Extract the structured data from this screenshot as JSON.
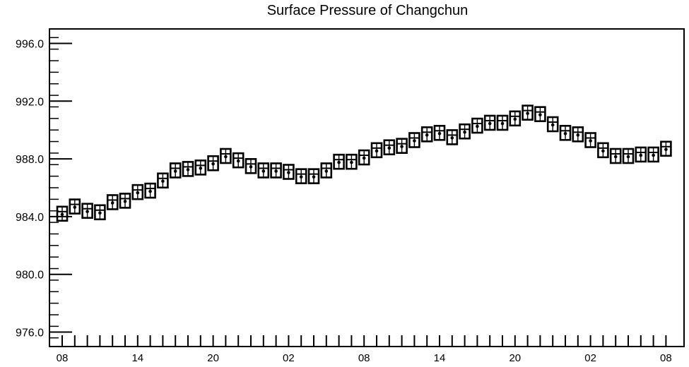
{
  "chart_data": {
    "type": "box",
    "title": "Surface Pressure of Changchun",
    "xlabel": "",
    "ylabel": "",
    "ylim": [
      975.0,
      997.0
    ],
    "y_ticks": [
      "976.0",
      "980.0",
      "984.0",
      "988.0",
      "992.0",
      "996.0"
    ],
    "x_ticks": [
      "08",
      "14",
      "20",
      "02",
      "08",
      "14",
      "20",
      "02",
      "08"
    ],
    "grid": false,
    "series": [
      {
        "values": [
          984.2,
          984.7,
          984.4,
          984.3,
          985.0,
          985.1,
          985.7,
          985.8,
          986.5,
          987.2,
          987.3,
          987.4,
          987.7,
          988.2,
          987.9,
          987.5,
          987.2,
          987.2,
          987.1,
          986.8,
          986.8,
          987.2,
          987.8,
          987.8,
          988.1,
          988.6,
          988.8,
          988.9,
          989.3,
          989.7,
          989.8,
          989.5,
          989.9,
          990.3,
          990.5,
          990.5,
          990.8,
          991.2,
          991.1,
          990.4,
          989.8,
          989.7,
          989.3,
          988.6,
          988.2,
          988.2,
          988.3,
          988.3,
          988.7
        ]
      }
    ]
  }
}
